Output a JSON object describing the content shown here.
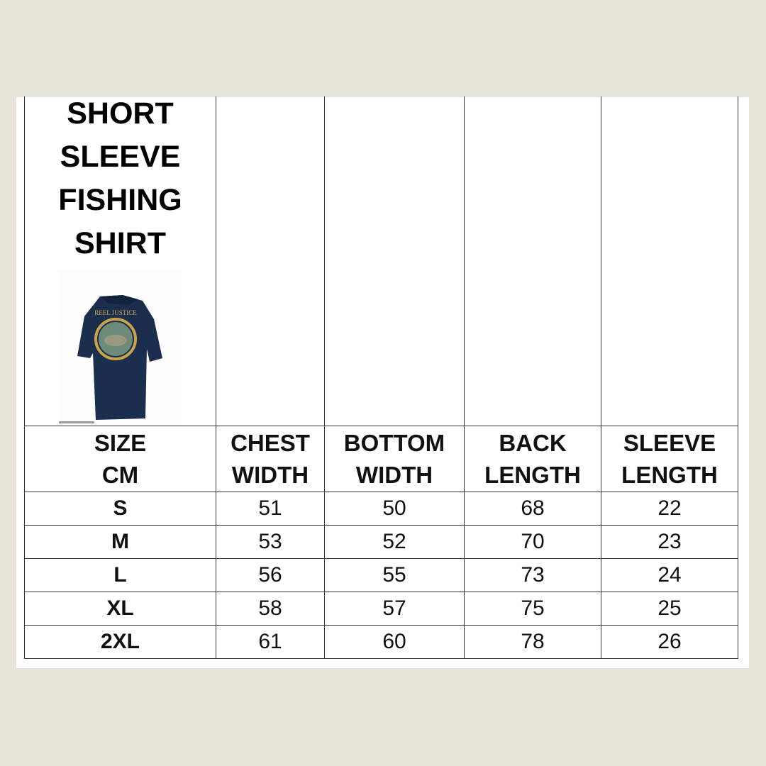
{
  "title_lines": [
    "SHORT",
    "SLEEVE",
    "FISHING",
    "SHIRT"
  ],
  "product_image": {
    "icon": "shirt-back-image",
    "logo_text": "REEL JUSTICE",
    "color": "#1c2e4e"
  },
  "headers": [
    [
      "SIZE",
      "CM"
    ],
    [
      "CHEST",
      "WIDTH"
    ],
    [
      "BOTTOM",
      "WIDTH"
    ],
    [
      "BACK",
      "LENGTH"
    ],
    [
      "SLEEVE",
      "LENGTH"
    ]
  ],
  "rows": [
    [
      "S",
      "51",
      "50",
      "68",
      "22"
    ],
    [
      "M",
      "53",
      "52",
      "70",
      "23"
    ],
    [
      "L",
      "56",
      "55",
      "73",
      "24"
    ],
    [
      "XL",
      "58",
      "57",
      "75",
      "25"
    ],
    [
      "2XL",
      "61",
      "60",
      "78",
      "26"
    ]
  ]
}
